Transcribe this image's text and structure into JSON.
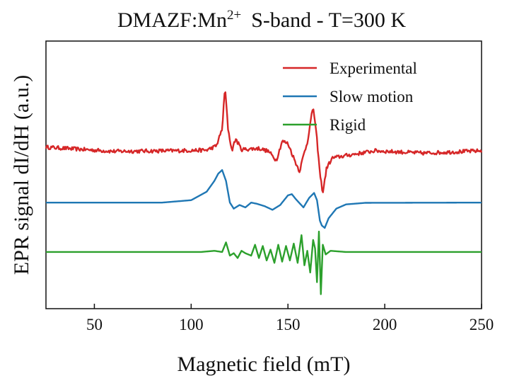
{
  "chart_data": {
    "type": "line",
    "title": "DMAZF:Mn",
    "title_superscript": "2+",
    "title_rest": "S-band - T=300 K",
    "xlabel": "Magnetic field (mT)",
    "ylabel": "EPR signal dI/dH (a.u.)",
    "xlim": [
      25,
      250
    ],
    "y_ticks_labeled": false,
    "x_ticks": [
      50,
      100,
      150,
      200,
      250
    ],
    "x_tick_labels": [
      "50",
      "100",
      "150",
      "200",
      "250"
    ],
    "grid": false,
    "legend_position": "top-right",
    "series": [
      {
        "name": "Experimental",
        "color": "#d62728",
        "baseline": 0,
        "noise": 0.16,
        "points": [
          [
            25,
            0.4
          ],
          [
            60,
            0.05
          ],
          [
            90,
            0.1
          ],
          [
            108,
            0.15
          ],
          [
            113,
            0.5
          ],
          [
            116,
            1.9
          ],
          [
            117.5,
            5.4
          ],
          [
            119,
            2.0
          ],
          [
            121,
            0.1
          ],
          [
            123,
            1.1
          ],
          [
            126,
            0.2
          ],
          [
            135,
            0.3
          ],
          [
            140,
            0.05
          ],
          [
            144,
            -0.7
          ],
          [
            147,
            0.9
          ],
          [
            150,
            0.7
          ],
          [
            154,
            -0.9
          ],
          [
            156,
            -1.6
          ],
          [
            158,
            -0.3
          ],
          [
            160,
            0.8
          ],
          [
            163,
            3.8
          ],
          [
            165,
            1.0
          ],
          [
            166.5,
            -1.8
          ],
          [
            168,
            -3.4
          ],
          [
            170,
            -1.3
          ],
          [
            173,
            -0.5
          ],
          [
            180,
            -0.3
          ],
          [
            195,
            0.1
          ],
          [
            220,
            -0.1
          ],
          [
            250,
            0.1
          ]
        ]
      },
      {
        "name": "Slow motion",
        "color": "#1f77b4",
        "baseline": -4.2,
        "noise": 0,
        "points": [
          [
            25,
            -4.2
          ],
          [
            85,
            -4.2
          ],
          [
            100,
            -4.0
          ],
          [
            108,
            -3.3
          ],
          [
            112,
            -2.4
          ],
          [
            114,
            -1.8
          ],
          [
            116,
            -1.5
          ],
          [
            118,
            -2.4
          ],
          [
            120,
            -4.2
          ],
          [
            122,
            -4.7
          ],
          [
            125,
            -4.4
          ],
          [
            128,
            -4.6
          ],
          [
            131,
            -4.2
          ],
          [
            134,
            -4.3
          ],
          [
            138,
            -4.5
          ],
          [
            142,
            -4.8
          ],
          [
            146,
            -4.4
          ],
          [
            150,
            -3.6
          ],
          [
            152,
            -3.5
          ],
          [
            154,
            -3.9
          ],
          [
            158,
            -4.6
          ],
          [
            161,
            -3.8
          ],
          [
            163.5,
            -3.4
          ],
          [
            165,
            -4.0
          ],
          [
            166.5,
            -5.7
          ],
          [
            167.5,
            -6.1
          ],
          [
            169,
            -6.3
          ],
          [
            171,
            -5.5
          ],
          [
            175,
            -4.7
          ],
          [
            180,
            -4.35
          ],
          [
            190,
            -4.22
          ],
          [
            250,
            -4.2
          ]
        ]
      },
      {
        "name": "Rigid",
        "color": "#2ca02c",
        "baseline": -8.3,
        "noise": 0,
        "points": [
          [
            25,
            -8.3
          ],
          [
            105,
            -8.3
          ],
          [
            112,
            -8.2
          ],
          [
            116,
            -8.3
          ],
          [
            118,
            -7.5
          ],
          [
            120,
            -8.6
          ],
          [
            122,
            -8.4
          ],
          [
            124,
            -8.8
          ],
          [
            126,
            -8.2
          ],
          [
            128,
            -8.4
          ],
          [
            131,
            -8.6
          ],
          [
            133,
            -7.7
          ],
          [
            135,
            -8.8
          ],
          [
            137,
            -7.8
          ],
          [
            139,
            -9.0
          ],
          [
            141,
            -8.1
          ],
          [
            143,
            -9.2
          ],
          [
            145,
            -7.7
          ],
          [
            147,
            -9.1
          ],
          [
            149,
            -7.8
          ],
          [
            151,
            -9.0
          ],
          [
            153,
            -7.6
          ],
          [
            155,
            -9.2
          ],
          [
            157,
            -6.9
          ],
          [
            158.5,
            -9.4
          ],
          [
            160,
            -8.2
          ],
          [
            161.5,
            -10.0
          ],
          [
            163,
            -7.3
          ],
          [
            164,
            -8.0
          ],
          [
            165,
            -10.8
          ],
          [
            166,
            -6.6
          ],
          [
            167,
            -11.8
          ],
          [
            168,
            -7.7
          ],
          [
            169.5,
            -8.5
          ],
          [
            172,
            -8.2
          ],
          [
            180,
            -8.3
          ],
          [
            250,
            -8.3
          ]
        ]
      }
    ]
  }
}
